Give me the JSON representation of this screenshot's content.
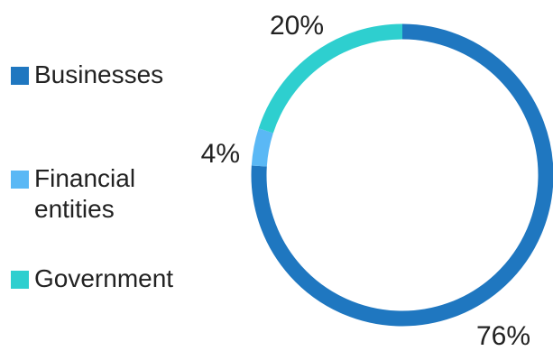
{
  "chart_data": {
    "type": "pie",
    "variant": "donut",
    "categories": [
      "Businesses",
      "Financial entities",
      "Government"
    ],
    "values": [
      76,
      4,
      20
    ],
    "value_labels": [
      "76%",
      "4%",
      "20%"
    ],
    "colors": [
      "#1f77c0",
      "#5ab8f5",
      "#2ecfcf"
    ],
    "legend_position": "left",
    "title": ""
  }
}
